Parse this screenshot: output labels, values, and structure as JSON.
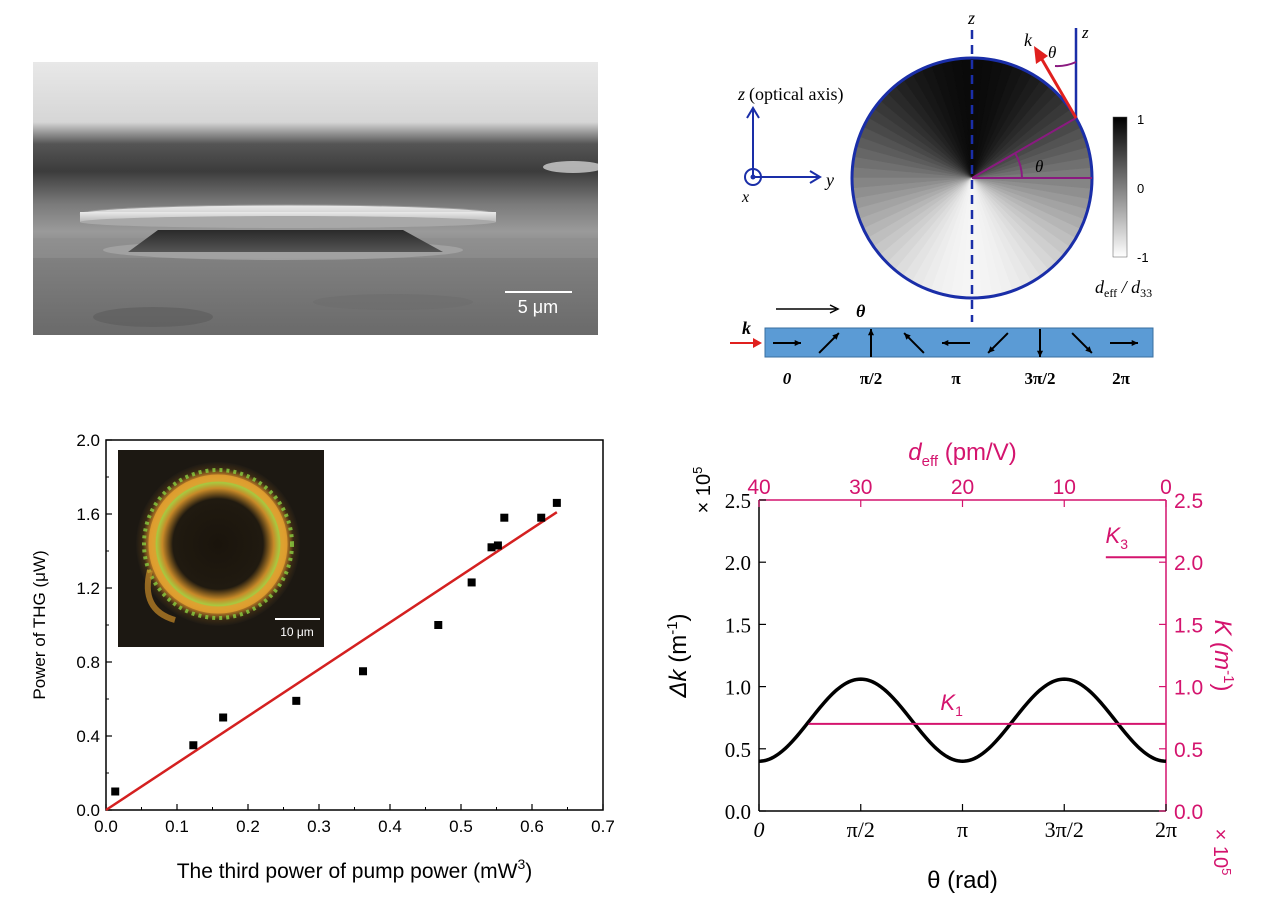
{
  "sem": {
    "scalebar": "5 μm"
  },
  "diagram": {
    "axis_z_top": "z",
    "axis_z_right": "z",
    "label_k": "k",
    "label_theta_top": "θ",
    "label_theta_inner": "θ",
    "coord_z": "z",
    "coord_z_note": "(optical axis)",
    "coord_y": "y",
    "coord_x": "x",
    "colorbar_max": "1",
    "colorbar_mid": "0",
    "colorbar_min": "-1",
    "colorbar_label_d": "d",
    "colorbar_label_eff": "eff",
    "colorbar_label_slash": " / d",
    "colorbar_label_33": "33",
    "strip_theta": "θ",
    "strip_k": "k",
    "strip_ticks": [
      "0",
      "π/2",
      "π",
      "3π/2",
      "2π"
    ]
  },
  "colors": {
    "dark_blue": "#1a2ea8",
    "red": "#e0201e",
    "magenta": "#d4146e",
    "purple": "#8a1a80",
    "strip_blue": "#5b9bd5",
    "fit_red": "#d42020"
  },
  "chart_data": [
    {
      "type": "scatter",
      "xlabel": "The third power of pump power (mW",
      "xlabel_sup": "3",
      "xlabel_end": ")",
      "ylabel": "Power of THG (μW)",
      "xlim": [
        0.0,
        0.7
      ],
      "ylim": [
        0.0,
        2.0
      ],
      "x_ticks": [
        "0.0",
        "0.1",
        "0.2",
        "0.3",
        "0.4",
        "0.5",
        "0.6",
        "0.7"
      ],
      "y_ticks": [
        "0.0",
        "0.4",
        "0.8",
        "1.2",
        "1.6",
        "2.0"
      ],
      "points": [
        [
          0.013,
          0.1
        ],
        [
          0.123,
          0.35
        ],
        [
          0.165,
          0.5
        ],
        [
          0.268,
          0.59
        ],
        [
          0.362,
          0.75
        ],
        [
          0.468,
          1.0
        ],
        [
          0.515,
          1.23
        ],
        [
          0.543,
          1.42
        ],
        [
          0.552,
          1.43
        ],
        [
          0.561,
          1.58
        ],
        [
          0.613,
          1.58
        ],
        [
          0.635,
          1.66
        ]
      ],
      "fit_line": [
        [
          0.0,
          0.0
        ],
        [
          0.635,
          1.61
        ]
      ],
      "inset_scalebar": "10 μm"
    },
    {
      "type": "line",
      "ylabel_left_symbol": "Δk",
      "ylabel_left_unit": " (m",
      "ylabel_left_sup": "-1",
      "ylabel_left_end": ")",
      "left_multiplier": "× 10",
      "left_multiplier_exp": "5",
      "xlabel": "θ (rad)",
      "x_ticks": [
        "0",
        "π/2",
        "π",
        "3π/2",
        "2π"
      ],
      "y_ticks": [
        "0.0",
        "0.5",
        "1.0",
        "1.5",
        "2.0",
        "2.5"
      ],
      "ylim": [
        0.0,
        2.5
      ],
      "top_axis_label_d": "d",
      "top_axis_label_eff": "eff",
      "top_axis_label_unit": " (pm/V)",
      "top_ticks": [
        "40",
        "30",
        "20",
        "10",
        "0"
      ],
      "right_ticks": [
        "0.0",
        "0.5",
        "1.0",
        "1.5",
        "2.0",
        "2.5"
      ],
      "ylabel_right": "K (m",
      "ylabel_right_sup": "-1",
      "ylabel_right_end": ")",
      "right_multiplier": "× 10",
      "right_multiplier_exp": "5",
      "series": [
        {
          "name": "",
          "x_start": 0.0,
          "x_end": 6.2832,
          "mean": 0.73,
          "amplitude": 0.33
        }
      ],
      "k1": {
        "label": "K",
        "sub": "1",
        "value": 0.7,
        "x_start": 1.5708,
        "x_end": 6.2832
      },
      "k3": {
        "label": "K",
        "sub": "3",
        "value": 2.04,
        "x_start": 5.2,
        "x_end": 6.2832
      }
    }
  ]
}
